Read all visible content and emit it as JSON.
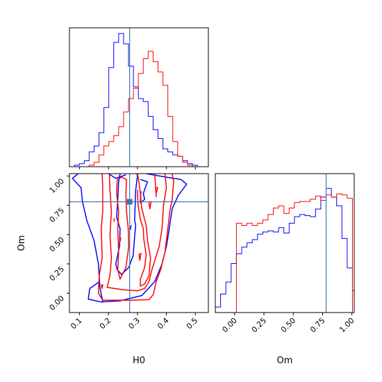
{
  "chart_data": {
    "type": "corner",
    "colors": {
      "blue": "#0000ff",
      "red": "#ff0000",
      "truth": "#3b76af"
    },
    "params": [
      "H0",
      "Om"
    ],
    "truth": {
      "H0": 0.273,
      "Om": 0.78
    },
    "xlabels": {
      "bottom_left": "H0",
      "bottom_right": "Om"
    },
    "ylabels": {
      "bottom_left": "Om"
    },
    "ranges": {
      "H0": [
        0.065,
        0.545
      ],
      "Om": [
        -0.165,
        1.02
      ]
    },
    "ticks": {
      "H0": [
        0.1,
        0.2,
        0.3,
        0.4,
        0.5
      ],
      "H0_labels": [
        "0.1",
        "0.2",
        "0.3",
        "0.4",
        "0.5"
      ],
      "Om": [
        0.0,
        0.25,
        0.5,
        0.75,
        1.0
      ],
      "Om_labels": [
        "0.00",
        "0.25",
        "0.50",
        "0.75",
        "1.00"
      ]
    },
    "hist_H0": {
      "bins": [
        0.065,
        0.082,
        0.099,
        0.116,
        0.133,
        0.15,
        0.167,
        0.184,
        0.201,
        0.218,
        0.235,
        0.252,
        0.269,
        0.286,
        0.303,
        0.32,
        0.337,
        0.354,
        0.371,
        0.388,
        0.405,
        0.422,
        0.439,
        0.456,
        0.473,
        0.49,
        0.507,
        0.524,
        0.545
      ],
      "blue": [
        0,
        1,
        2,
        4,
        10,
        14,
        23,
        40,
        67,
        84,
        90,
        83,
        68,
        54,
        46,
        44,
        34,
        25,
        19,
        12,
        10,
        8,
        7,
        4,
        2,
        1,
        0,
        0
      ],
      "red": [
        0,
        0,
        0,
        0,
        1,
        3,
        8,
        14,
        17,
        21,
        27,
        37,
        46,
        53,
        63,
        73,
        78,
        71,
        64,
        55,
        34,
        17,
        7,
        3,
        1,
        0,
        0,
        0
      ],
      "ymax": 92
    },
    "hist_Om": {
      "bins": [
        -0.165,
        -0.12,
        -0.075,
        -0.03,
        0.015,
        0.06,
        0.105,
        0.15,
        0.195,
        0.24,
        0.285,
        0.33,
        0.375,
        0.42,
        0.465,
        0.51,
        0.555,
        0.6,
        0.645,
        0.69,
        0.735,
        0.78,
        0.825,
        0.87,
        0.915,
        0.96,
        1.005,
        1.02
      ],
      "blue": [
        5,
        17,
        28,
        45,
        54,
        60,
        64,
        67,
        72,
        74,
        75,
        74,
        78,
        73,
        82,
        88,
        90,
        89,
        88,
        95,
        106,
        114,
        106,
        98,
        68,
        41,
        20
      ],
      "red": [
        0,
        0,
        0,
        0,
        82,
        80,
        82,
        80,
        82,
        85,
        90,
        96,
        98,
        91,
        96,
        101,
        102,
        102,
        104,
        107,
        103,
        108,
        106,
        109,
        108,
        105,
        0
      ],
      "ymax": 125
    },
    "contours": {
      "blue": [
        [
          [
            0.18,
            -0.07
          ],
          [
            0.17,
            0.05
          ],
          [
            0.165,
            0.25
          ],
          [
            0.15,
            0.45
          ],
          [
            0.125,
            0.62
          ],
          [
            0.11,
            0.78
          ],
          [
            0.105,
            0.9
          ],
          [
            0.075,
            0.98
          ],
          [
            0.095,
            1.02
          ]
        ],
        [
          [
            0.33,
            1.02
          ],
          [
            0.4,
            0.99
          ],
          [
            0.45,
            0.97
          ],
          [
            0.47,
            0.93
          ],
          [
            0.455,
            0.88
          ],
          [
            0.44,
            0.83
          ],
          [
            0.42,
            0.72
          ],
          [
            0.41,
            0.55
          ],
          [
            0.4,
            0.4
          ],
          [
            0.385,
            0.25
          ],
          [
            0.36,
            0.1
          ],
          [
            0.315,
            -0.02
          ],
          [
            0.24,
            -0.065
          ],
          [
            0.175,
            -0.075
          ],
          [
            0.13,
            -0.05
          ],
          [
            0.135,
            0.04
          ],
          [
            0.17,
            0.1
          ]
        ],
        [
          [
            0.24,
            1.02
          ],
          [
            0.235,
            0.95
          ],
          [
            0.232,
            0.8
          ],
          [
            0.228,
            0.65
          ],
          [
            0.24,
            0.55
          ],
          [
            0.238,
            0.4
          ],
          [
            0.225,
            0.25
          ],
          [
            0.23,
            0.2
          ],
          [
            0.245,
            0.16
          ],
          [
            0.27,
            0.22
          ],
          [
            0.285,
            0.32
          ],
          [
            0.29,
            0.48
          ],
          [
            0.294,
            0.58
          ],
          [
            0.29,
            0.62
          ],
          [
            0.292,
            0.75
          ],
          [
            0.294,
            0.88
          ],
          [
            0.3,
            1.0
          ],
          [
            0.298,
            1.02
          ]
        ],
        [
          [
            0.2,
            1.02
          ],
          [
            0.225,
            0.98
          ],
          [
            0.26,
            1.01
          ]
        ],
        [
          [
            0.31,
            0.97
          ],
          [
            0.335,
            0.95
          ],
          [
            0.33,
            0.92
          ],
          [
            0.32,
            0.85
          ],
          [
            0.325,
            0.8
          ],
          [
            0.31,
            0.77
          ],
          [
            0.312,
            0.87
          ]
        ],
        [
          [
            0.275,
            0.54
          ],
          [
            0.278,
            0.58
          ]
        ]
      ],
      "red": [
        [
          [
            0.178,
            1.02
          ],
          [
            0.18,
            0.9
          ],
          [
            0.18,
            0.7
          ],
          [
            0.175,
            0.55
          ],
          [
            0.178,
            0.3
          ],
          [
            0.168,
            0.15
          ],
          [
            0.165,
            0.0
          ],
          [
            0.18,
            -0.06
          ],
          [
            0.28,
            -0.06
          ],
          [
            0.34,
            -0.055
          ],
          [
            0.355,
            -0.01
          ],
          [
            0.365,
            0.1
          ],
          [
            0.38,
            0.2
          ],
          [
            0.395,
            0.35
          ],
          [
            0.405,
            0.55
          ],
          [
            0.412,
            0.7
          ],
          [
            0.42,
            0.8
          ],
          [
            0.425,
            0.95
          ],
          [
            0.42,
            1.02
          ]
        ],
        [
          [
            0.203,
            1.02
          ],
          [
            0.205,
            0.88
          ],
          [
            0.21,
            0.7
          ],
          [
            0.205,
            0.5
          ],
          [
            0.21,
            0.3
          ],
          [
            0.205,
            0.15
          ],
          [
            0.195,
            0.05
          ],
          [
            0.25,
            0.03
          ],
          [
            0.3,
            0.02
          ],
          [
            0.325,
            0.04
          ],
          [
            0.34,
            0.1
          ],
          [
            0.35,
            0.2
          ],
          [
            0.375,
            0.4
          ],
          [
            0.385,
            0.55
          ],
          [
            0.39,
            0.75
          ],
          [
            0.4,
            0.9
          ],
          [
            0.395,
            1.02
          ]
        ],
        [
          [
            0.23,
            0.97
          ],
          [
            0.228,
            0.85
          ],
          [
            0.235,
            0.7
          ],
          [
            0.232,
            0.55
          ],
          [
            0.235,
            0.35
          ],
          [
            0.232,
            0.2
          ],
          [
            0.24,
            0.12
          ],
          [
            0.26,
            0.22
          ],
          [
            0.27,
            0.4
          ],
          [
            0.268,
            0.55
          ],
          [
            0.262,
            0.7
          ],
          [
            0.26,
            0.85
          ],
          [
            0.262,
            0.97
          ],
          [
            0.245,
            0.99
          ],
          [
            0.23,
            0.97
          ]
        ],
        [
          [
            0.3,
            1.02
          ],
          [
            0.305,
            0.95
          ],
          [
            0.31,
            0.85
          ],
          [
            0.315,
            0.72
          ],
          [
            0.33,
            0.58
          ],
          [
            0.335,
            0.45
          ],
          [
            0.345,
            0.3
          ],
          [
            0.34,
            0.15
          ],
          [
            0.325,
            0.08
          ],
          [
            0.31,
            0.06
          ],
          [
            0.31,
            0.12
          ],
          [
            0.325,
            0.22
          ],
          [
            0.33,
            0.33
          ],
          [
            0.322,
            0.46
          ],
          [
            0.32,
            0.55
          ],
          [
            0.31,
            0.63
          ],
          [
            0.302,
            0.75
          ],
          [
            0.3,
            0.88
          ]
        ],
        [
          [
            0.36,
            1.02
          ],
          [
            0.362,
            0.92
          ],
          [
            0.365,
            0.82
          ]
        ],
        [
          [
            0.175,
            0.07
          ],
          [
            0.178,
            0.04
          ],
          [
            0.18,
            0.07
          ],
          [
            0.175,
            0.07
          ]
        ],
        [
          [
            0.305,
            0.33
          ],
          [
            0.308,
            0.28
          ],
          [
            0.312,
            0.34
          ],
          [
            0.305,
            0.33
          ]
        ],
        [
          [
            0.362,
            0.9
          ],
          [
            0.366,
            0.86
          ],
          [
            0.37,
            0.9
          ],
          [
            0.362,
            0.9
          ]
        ],
        [
          [
            0.339,
            0.78
          ],
          [
            0.343,
            0.72
          ],
          [
            0.347,
            0.78
          ],
          [
            0.339,
            0.78
          ]
        ],
        [
          [
            0.238,
            0.47
          ],
          [
            0.24,
            0.44
          ],
          [
            0.242,
            0.47
          ],
          [
            0.238,
            0.47
          ]
        ],
        [
          [
            0.219,
            0.64
          ],
          [
            0.22,
            0.61
          ]
        ]
      ]
    }
  }
}
